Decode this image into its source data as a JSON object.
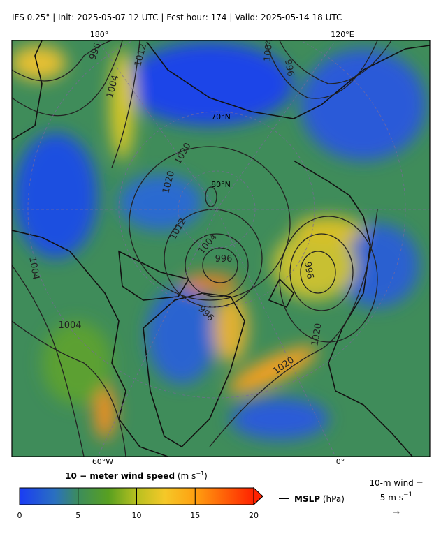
{
  "header": {
    "title": "IFS 0.25°  |  Init: 2025-05-07 12 UTC  |  Fcst hour: 174  |  Valid: 2025-05-14 18 UTC"
  },
  "map": {
    "lon_labels": [
      "180°",
      "120°E",
      "60°W",
      "0°"
    ],
    "lat_labels": [
      "70°N",
      "80°N"
    ],
    "contour_labels": [
      996,
      1004,
      1012,
      1004,
      1004,
      996,
      996,
      1020,
      1020,
      1012,
      1004,
      996,
      996,
      1020,
      1020,
      1004
    ]
  },
  "colorbar": {
    "title": "10 − meter wind speed",
    "units": [
      "(m s",
      "−1",
      ")"
    ],
    "lim": [
      0,
      20
    ],
    "ticks": [
      0,
      5,
      10,
      15,
      20
    ]
  },
  "mslp_legend": {
    "name": "MSLP",
    "units": "(hPa)"
  },
  "wind_reference": {
    "line1": "10-m wind =",
    "line2": [
      "5 m s",
      "−1"
    ],
    "arrow": "→"
  }
}
